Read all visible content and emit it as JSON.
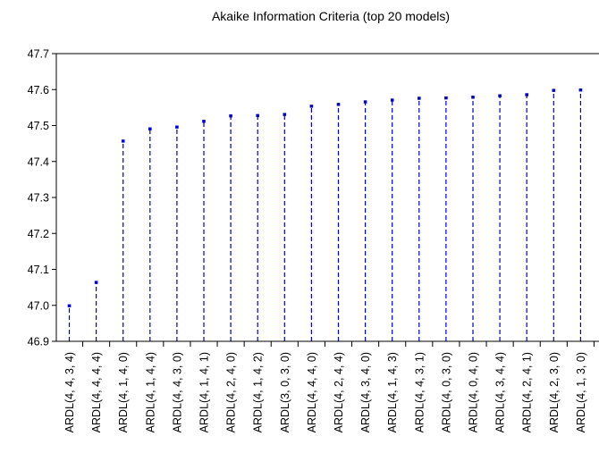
{
  "chart_data": {
    "type": "line",
    "style": "dropline",
    "title": "Akaike Information Criteria (top 20 models)",
    "xlabel": "",
    "ylabel": "",
    "ylim": [
      46.9,
      47.7
    ],
    "yticks": [
      "46.9",
      "47.0",
      "47.1",
      "47.2",
      "47.3",
      "47.4",
      "47.5",
      "47.6",
      "47.7"
    ],
    "grid": false,
    "legend": "none",
    "colors": {
      "series": "#0000cc",
      "axis": "#000000"
    },
    "categories": [
      "ARDL(4, 4, 3, 4)",
      "ARDL(4, 4, 4, 4)",
      "ARDL(4, 1, 4, 0)",
      "ARDL(4, 1, 4, 4)",
      "ARDL(4, 4, 3, 0)",
      "ARDL(4, 1, 4, 1)",
      "ARDL(4, 2, 4, 0)",
      "ARDL(4, 1, 4, 2)",
      "ARDL(3, 0, 3, 0)",
      "ARDL(4, 4, 4, 0)",
      "ARDL(4, 2, 4, 4)",
      "ARDL(4, 3, 4, 0)",
      "ARDL(4, 1, 4, 3)",
      "ARDL(4, 4, 3, 1)",
      "ARDL(4, 0, 3, 0)",
      "ARDL(4, 0, 4, 0)",
      "ARDL(4, 3, 4, 4)",
      "ARDL(4, 2, 4, 1)",
      "ARDL(4, 2, 3, 0)",
      "ARDL(4, 1, 3, 0)"
    ],
    "values": [
      47.0,
      47.065,
      47.458,
      47.492,
      47.497,
      47.513,
      47.528,
      47.529,
      47.532,
      47.555,
      47.56,
      47.567,
      47.572,
      47.577,
      47.578,
      47.58,
      47.584,
      47.587,
      47.599,
      47.6
    ]
  }
}
